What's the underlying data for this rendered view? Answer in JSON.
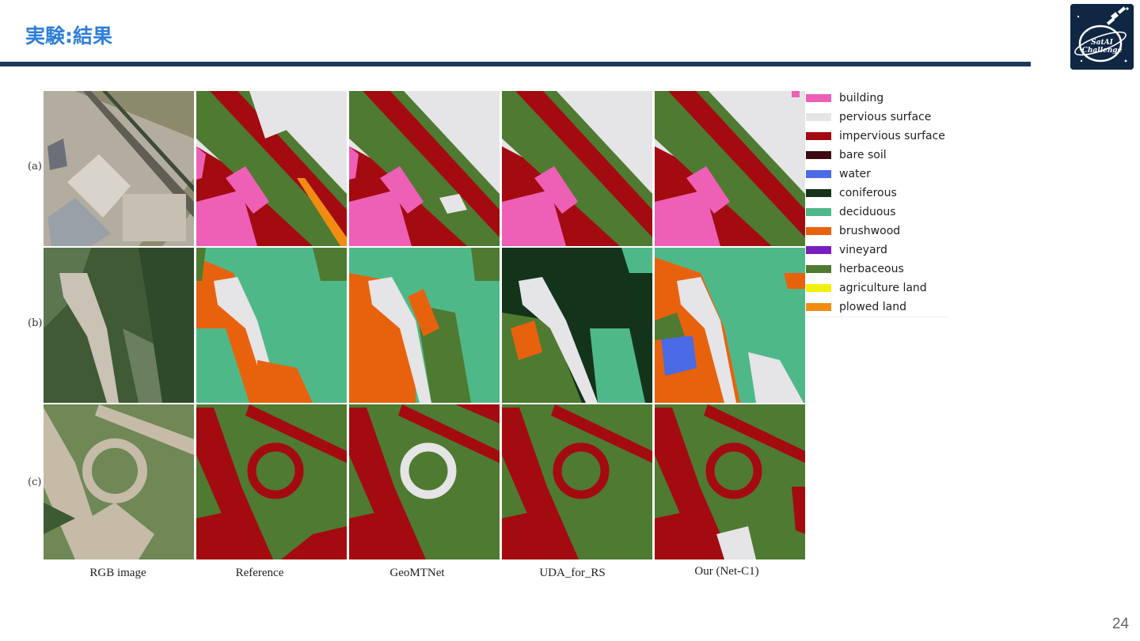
{
  "slide": {
    "title": "実験:結果",
    "page_number": "24"
  },
  "logo": {
    "text": "SatAI Challenge",
    "icon": "satellite-icon"
  },
  "figure": {
    "row_labels": [
      "(a)",
      "(b)",
      "(c)"
    ],
    "column_labels": [
      "RGB image",
      "Reference",
      "GeoMTNet",
      "UDA_for_RS",
      "Our (Net-C1)"
    ]
  },
  "legend": [
    {
      "label": "building",
      "color": "#ee5fb6"
    },
    {
      "label": "pervious surface",
      "color": "#e5e4e6"
    },
    {
      "label": "impervious surface",
      "color": "#a30b10"
    },
    {
      "label": "bare soil",
      "color": "#3d0a12"
    },
    {
      "label": "water",
      "color": "#4a6ae6"
    },
    {
      "label": "coniferous",
      "color": "#13331a"
    },
    {
      "label": "deciduous",
      "color": "#4fb889"
    },
    {
      "label": "brushwood",
      "color": "#e8620e"
    },
    {
      "label": "vineyard",
      "color": "#7a1ec0"
    },
    {
      "label": "herbaceous",
      "color": "#4f7a31"
    },
    {
      "label": "agriculture land",
      "color": "#f5f00a"
    },
    {
      "label": "plowed land",
      "color": "#f08c12"
    }
  ]
}
